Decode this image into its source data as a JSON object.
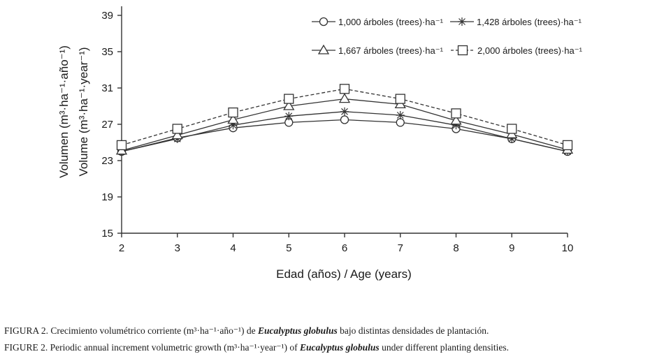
{
  "chart_data": {
    "type": "line",
    "title": "",
    "ylabel_es": "Volumen (m³·ha⁻¹·año⁻¹)",
    "ylabel_en": "Volume (m³·ha⁻¹·year⁻¹)",
    "xlabel": "Edad (años) / Age (years)",
    "x": [
      2,
      3,
      4,
      5,
      6,
      7,
      8,
      9,
      10
    ],
    "xlim": [
      2,
      10
    ],
    "ylim": [
      15,
      40
    ],
    "yticks": [
      15,
      19,
      23,
      27,
      31,
      35,
      39
    ],
    "xticks": [
      2,
      3,
      4,
      5,
      6,
      7,
      8,
      9,
      10
    ],
    "grid": false,
    "legend_position": "top-right",
    "series": [
      {
        "name": "1,000 árboles (trees)·ha⁻¹",
        "marker": "circle",
        "line": "solid",
        "values": [
          24.0,
          25.5,
          26.6,
          27.2,
          27.5,
          27.2,
          26.5,
          25.4,
          24.0
        ]
      },
      {
        "name": "1,428 árboles (trees)·ha⁻¹",
        "marker": "asterisk",
        "line": "solid",
        "values": [
          24.0,
          25.4,
          26.9,
          27.9,
          28.4,
          28.0,
          26.9,
          25.4,
          24.0
        ]
      },
      {
        "name": "1,667 árboles (trees)·ha⁻¹",
        "marker": "triangle",
        "line": "solid",
        "values": [
          24.1,
          25.8,
          27.5,
          29.0,
          29.8,
          29.2,
          27.4,
          25.9,
          24.2
        ]
      },
      {
        "name": "2,000 árboles (trees)·ha⁻¹",
        "marker": "square",
        "line": "dashed",
        "values": [
          24.7,
          26.5,
          28.3,
          29.8,
          30.9,
          29.8,
          28.2,
          26.5,
          24.7
        ]
      }
    ]
  },
  "captions": {
    "es_prefix": "FIGURA 2. Crecimiento volumétrico corriente (m³·ha⁻¹·año⁻¹) de ",
    "es_species": "Eucalyptus globulus",
    "es_suffix": " bajo distintas densidades de plantación.",
    "en_prefix": "FIGURE 2. Periodic annual increment volumetric growth (m³·ha⁻¹·year⁻¹) of ",
    "en_species": "Eucalyptus globulus",
    "en_suffix": " under different planting densities."
  }
}
